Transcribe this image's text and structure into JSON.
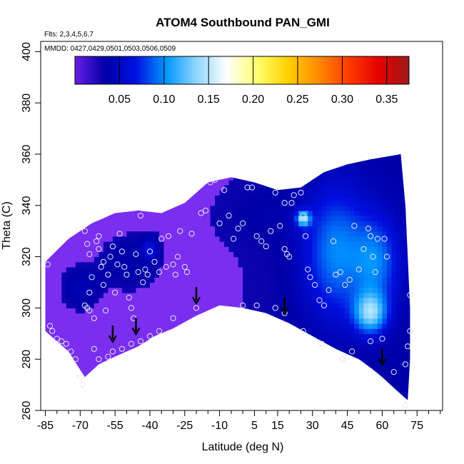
{
  "chart_data": {
    "type": "heatmap",
    "title": "ATOM4 Southbound PAN_GMI",
    "flights_label": "Flts: 2,3,4,5,6,7",
    "dates_label": "MMDD: 0427,0429,0501,0503,0506,0509",
    "xlabel": "Latitude (deg N)",
    "ylabel": "Theta (C)",
    "xlim": [
      -87,
      86
    ],
    "ylim": [
      260,
      404
    ],
    "x_ticks": [
      -85,
      -70,
      -55,
      -40,
      -25,
      -10,
      5,
      15,
      30,
      45,
      60,
      75
    ],
    "x_minor_ticks": [
      -80,
      -75,
      -65,
      -60,
      -50,
      -45,
      -35,
      -30,
      -20,
      -15,
      -5,
      0,
      10,
      20,
      25,
      35,
      40,
      50,
      55,
      65,
      70,
      80,
      85
    ],
    "y_ticks": [
      260,
      280,
      300,
      320,
      340,
      360,
      380,
      400
    ],
    "colorbar": {
      "range": [
        0.0,
        0.375
      ],
      "ticks": [
        0.05,
        0.1,
        0.15,
        0.2,
        0.25,
        0.3,
        0.35
      ],
      "tick_labels": [
        "0.05",
        "0.10",
        "0.15",
        "0.20",
        "0.25",
        "0.30",
        "0.35"
      ],
      "stops": [
        "#6a1ee6",
        "#0000a8",
        "#0010e0",
        "#0096ff",
        "#8fd6ff",
        "#ffffff",
        "#ffff6e",
        "#ffd000",
        "#ff8c00",
        "#ff3c00",
        "#e60000",
        "#9e1a1a"
      ]
    },
    "lower_boundary": [
      [
        -85,
        291
      ],
      [
        -75,
        283
      ],
      [
        -68,
        273
      ],
      [
        -62,
        278
      ],
      [
        -55,
        281
      ],
      [
        -50,
        283
      ],
      [
        -45,
        285
      ],
      [
        -38,
        289
      ],
      [
        -30,
        292
      ],
      [
        -20,
        297
      ],
      [
        -10,
        301
      ],
      [
        0,
        300
      ],
      [
        10,
        298
      ],
      [
        20,
        294
      ],
      [
        30,
        289
      ],
      [
        40,
        284
      ],
      [
        50,
        280
      ],
      [
        56,
        276
      ],
      [
        60,
        273
      ],
      [
        66,
        268
      ],
      [
        71,
        264
      ]
    ],
    "upper_boundary": [
      [
        -85,
        318
      ],
      [
        -75,
        327
      ],
      [
        -65,
        333
      ],
      [
        -55,
        337
      ],
      [
        -45,
        338
      ],
      [
        -35,
        337
      ],
      [
        -25,
        341
      ],
      [
        -15,
        349
      ],
      [
        -5,
        351
      ],
      [
        5,
        349
      ],
      [
        15,
        346
      ],
      [
        25,
        347
      ],
      [
        35,
        353
      ],
      [
        45,
        356
      ],
      [
        55,
        358
      ],
      [
        68,
        360
      ]
    ],
    "right_boundary": [
      [
        68,
        360
      ],
      [
        70,
        340
      ],
      [
        71,
        320
      ],
      [
        72,
        300
      ],
      [
        72,
        280
      ],
      [
        71,
        264
      ]
    ],
    "field_blobs": [
      {
        "lat": 40,
        "theta": 322,
        "value": 0.095,
        "sx": 14,
        "sy": 26
      },
      {
        "lat": 55,
        "theta": 298,
        "value": 0.12,
        "sx": 7,
        "sy": 8
      },
      {
        "lat": 58,
        "theta": 318,
        "value": 0.085,
        "sx": 10,
        "sy": 18
      },
      {
        "lat": 26,
        "theta": 335,
        "value": 0.13,
        "sx": 3,
        "sy": 3
      },
      {
        "lat": -40,
        "theta": 323,
        "value": 0.07,
        "sx": 3,
        "sy": 4
      },
      {
        "lat": -70,
        "theta": 308,
        "value": 0.045,
        "sx": 8,
        "sy": 8
      },
      {
        "lat": -50,
        "theta": 318,
        "value": 0.04,
        "sx": 12,
        "sy": 10
      },
      {
        "lat": 10,
        "theta": 336,
        "value": 0.035,
        "sx": 18,
        "sy": 10
      }
    ],
    "sample_points": [
      [
        -68,
        330
      ],
      [
        -67,
        325
      ],
      [
        -66,
        321
      ],
      [
        -66,
        306
      ],
      [
        -65,
        312
      ],
      [
        -64,
        296
      ],
      [
        -63,
        326
      ],
      [
        -62,
        323
      ],
      [
        -62,
        328
      ],
      [
        -61,
        316
      ],
      [
        -60,
        318
      ],
      [
        -60,
        309
      ],
      [
        -59,
        299
      ],
      [
        -58,
        313
      ],
      [
        -57,
        320
      ],
      [
        -56,
        324
      ],
      [
        -55,
        306
      ],
      [
        -54,
        317
      ],
      [
        -53,
        329
      ],
      [
        -52,
        322
      ],
      [
        -51,
        316
      ],
      [
        -50,
        313
      ],
      [
        -49,
        304
      ],
      [
        -48,
        300
      ],
      [
        -47,
        296
      ],
      [
        -46,
        321
      ],
      [
        -45,
        314
      ],
      [
        -44,
        336
      ],
      [
        -43,
        310
      ],
      [
        -42,
        315
      ],
      [
        -41,
        313
      ],
      [
        -40,
        322
      ],
      [
        -38,
        318
      ],
      [
        -36,
        314
      ],
      [
        -35,
        327
      ],
      [
        -33,
        316
      ],
      [
        -32,
        328
      ],
      [
        -30,
        317
      ],
      [
        -29,
        313
      ],
      [
        -28,
        320
      ],
      [
        -27,
        330
      ],
      [
        -25,
        316
      ],
      [
        -24,
        314
      ],
      [
        -22,
        329
      ],
      [
        -20,
        300
      ],
      [
        -18,
        337
      ],
      [
        -16,
        338
      ],
      [
        -14,
        349
      ],
      [
        -12,
        350
      ],
      [
        -10,
        333
      ],
      [
        -8,
        346
      ],
      [
        -6,
        336
      ],
      [
        -4,
        327
      ],
      [
        -2,
        331
      ],
      [
        0,
        333
      ],
      [
        2,
        347
      ],
      [
        4,
        347
      ],
      [
        6,
        328
      ],
      [
        8,
        326
      ],
      [
        10,
        324
      ],
      [
        12,
        330
      ],
      [
        14,
        345
      ],
      [
        16,
        332
      ],
      [
        18,
        341
      ],
      [
        18,
        323
      ],
      [
        19,
        321
      ],
      [
        20,
        320
      ],
      [
        21,
        341
      ],
      [
        22,
        344
      ],
      [
        25,
        345
      ],
      [
        26,
        336
      ],
      [
        27,
        328
      ],
      [
        28,
        315
      ],
      [
        29,
        312
      ],
      [
        31,
        309
      ],
      [
        33,
        303
      ],
      [
        35,
        301
      ],
      [
        37,
        307
      ],
      [
        39,
        326
      ],
      [
        40,
        313
      ],
      [
        42,
        314
      ],
      [
        44,
        309
      ],
      [
        46,
        311
      ],
      [
        48,
        332
      ],
      [
        50,
        315
      ],
      [
        52,
        323
      ],
      [
        54,
        331
      ],
      [
        55,
        328
      ],
      [
        56,
        320
      ],
      [
        57,
        314
      ],
      [
        58,
        327
      ],
      [
        60,
        288
      ],
      [
        61,
        327
      ],
      [
        62,
        320
      ],
      [
        -84,
        317
      ],
      [
        -83,
        293
      ],
      [
        -82,
        291
      ],
      [
        -80,
        288
      ],
      [
        -78,
        287
      ],
      [
        -76,
        286
      ],
      [
        -74,
        283
      ],
      [
        -72,
        280
      ],
      [
        -70,
        273
      ],
      [
        -69,
        270
      ],
      [
        -68,
        301
      ],
      [
        -67,
        300
      ],
      [
        -66,
        299
      ],
      [
        -64,
        284
      ],
      [
        -62,
        280
      ],
      [
        -58,
        281
      ],
      [
        -56,
        283
      ],
      [
        -52,
        284
      ],
      [
        -48,
        286
      ],
      [
        -44,
        287
      ],
      [
        -40,
        289
      ],
      [
        -36,
        291
      ],
      [
        -30,
        296
      ],
      [
        0,
        301
      ],
      [
        6,
        301
      ],
      [
        14,
        300
      ],
      [
        18,
        298
      ],
      [
        26,
        291
      ],
      [
        34,
        286
      ],
      [
        43,
        280
      ],
      [
        47,
        283
      ],
      [
        55,
        287
      ],
      [
        65,
        275
      ],
      [
        70,
        262
      ],
      [
        70,
        278
      ],
      [
        71,
        285
      ],
      [
        72,
        291
      ],
      [
        72,
        305
      ]
    ],
    "arrows": [
      [
        -56,
        287
      ],
      [
        -46,
        290
      ],
      [
        -20,
        302
      ],
      [
        18,
        298
      ],
      [
        60,
        278
      ]
    ]
  }
}
